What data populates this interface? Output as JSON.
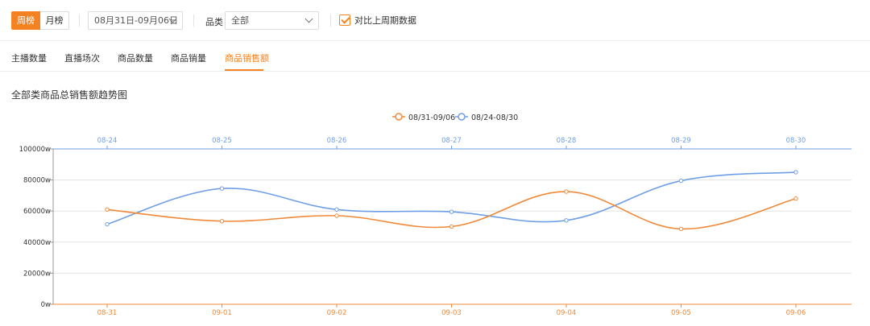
{
  "toolbar": {
    "period_tabs": [
      {
        "label": "周榜",
        "active": true
      },
      {
        "label": "月榜",
        "active": false
      }
    ],
    "date_range": "08月31日-09月06日",
    "category_label": "品类",
    "category_value": "全部",
    "compare_checked": true,
    "compare_label": "对比上周期数据"
  },
  "metric_tabs": [
    {
      "label": "主播数量",
      "active": false
    },
    {
      "label": "直播场次",
      "active": false
    },
    {
      "label": "商品数量",
      "active": false
    },
    {
      "label": "商品销量",
      "active": false
    },
    {
      "label": "商品销售额",
      "active": true
    }
  ],
  "chart_title": "全部类商品总销售额趋势图",
  "colors": {
    "accent": "#f58220",
    "current": "#f0893a",
    "previous": "#6f9fe6",
    "grid": "#e6e6e6"
  },
  "chart_data": {
    "type": "line",
    "title": "全部类商品总销售额趋势图",
    "legend_position": "top-center",
    "y_unit": "w",
    "ylim": [
      0,
      100000
    ],
    "yticks": [
      0,
      20000,
      40000,
      60000,
      80000,
      100000
    ],
    "grid": true,
    "x_bottom": [
      "08-31",
      "09-01",
      "09-02",
      "09-03",
      "09-04",
      "09-05",
      "09-06"
    ],
    "x_top": [
      "08-24",
      "08-25",
      "08-26",
      "08-27",
      "08-28",
      "08-29",
      "08-30"
    ],
    "series": [
      {
        "name": "08/31-09/06",
        "axis": "bottom",
        "color": "#f0893a",
        "values": [
          61000,
          53500,
          57000,
          50000,
          72500,
          48500,
          68000
        ]
      },
      {
        "name": "08/24-08/30",
        "axis": "top",
        "color": "#6f9fe6",
        "values": [
          51500,
          74500,
          61000,
          59500,
          54000,
          79500,
          85000
        ]
      }
    ]
  }
}
